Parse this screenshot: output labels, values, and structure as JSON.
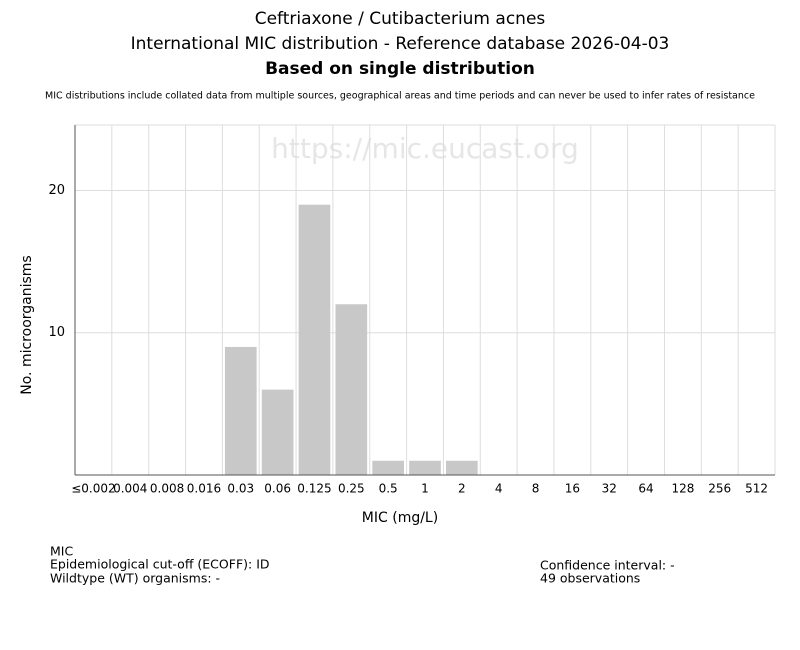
{
  "chart_data": {
    "type": "bar",
    "title_lines": [
      "Ceftriaxone / Cutibacterium acnes",
      "International MIC distribution - Reference database 2026-04-03",
      "Based on single distribution"
    ],
    "note": "MIC distributions include collated data from multiple sources, geographical areas and time periods and can never be used to infer rates of resistance",
    "watermark": "https://mic.eucast.org",
    "x_label": "MIC (mg/L)",
    "y_label": "No. microorganisms",
    "categories": [
      "≤0.002",
      "0.004",
      "0.008",
      "0.016",
      "0.03",
      "0.06",
      "0.125",
      "0.25",
      "0.5",
      "1",
      "2",
      "4",
      "8",
      "16",
      "32",
      "64",
      "128",
      "256",
      "512"
    ],
    "values": [
      0,
      0,
      0,
      0,
      9,
      6,
      19,
      12,
      1,
      1,
      1,
      0,
      0,
      0,
      0,
      0,
      0,
      0,
      0
    ],
    "color": "#c8c8c8",
    "ylim": [
      0,
      24.6
    ],
    "yticks": [
      10,
      20
    ],
    "grid": true
  },
  "footer": {
    "left": [
      "MIC",
      "Epidemiological cut-off (ECOFF): ID",
      "Wildtype (WT) organisms:  -"
    ],
    "right": [
      "Confidence interval: -",
      "49 observations"
    ]
  }
}
